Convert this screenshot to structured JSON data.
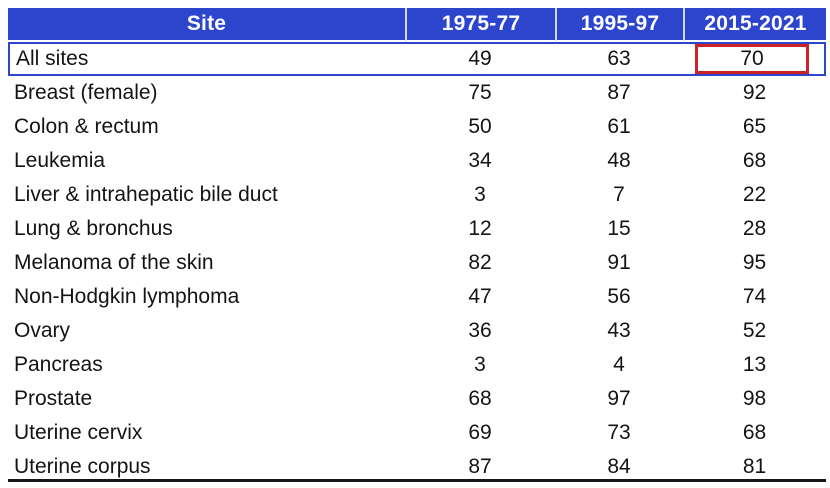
{
  "table": {
    "columns": [
      "Site",
      "1975-77",
      "1995-97",
      "2015-2021"
    ],
    "rows": [
      {
        "site": "All sites",
        "values": [
          "49",
          "63",
          "70"
        ],
        "row_highlight": true,
        "cell_highlight_index": 2
      },
      {
        "site": "Breast (female)",
        "values": [
          "75",
          "87",
          "92"
        ]
      },
      {
        "site": "Colon & rectum",
        "values": [
          "50",
          "61",
          "65"
        ]
      },
      {
        "site": "Leukemia",
        "values": [
          "34",
          "48",
          "68"
        ]
      },
      {
        "site": "Liver & intrahepatic bile duct",
        "values": [
          "3",
          "7",
          "22"
        ]
      },
      {
        "site": "Lung & bronchus",
        "values": [
          "12",
          "15",
          "28"
        ]
      },
      {
        "site": "Melanoma of the skin",
        "values": [
          "82",
          "91",
          "95"
        ]
      },
      {
        "site": "Non-Hodgkin lymphoma",
        "values": [
          "47",
          "56",
          "74"
        ]
      },
      {
        "site": "Ovary",
        "values": [
          "36",
          "43",
          "52"
        ]
      },
      {
        "site": "Pancreas",
        "values": [
          "3",
          "4",
          "13"
        ]
      },
      {
        "site": "Prostate",
        "values": [
          "68",
          "97",
          "98"
        ]
      },
      {
        "site": "Uterine cervix",
        "values": [
          "69",
          "73",
          "68"
        ]
      },
      {
        "site": "Uterine corpus",
        "values": [
          "87",
          "84",
          "81"
        ]
      }
    ],
    "colors": {
      "header_bg": "#2c45cc",
      "header_text": "#ffffff",
      "row_outline": "#2c45cc",
      "cell_box": "#cc2127",
      "bottom_rule": "#15151c"
    }
  },
  "chart_data": {
    "type": "table",
    "title": "",
    "columns": [
      "Site",
      "1975-77",
      "1995-97",
      "2015-2021"
    ],
    "rows": [
      [
        "All sites",
        49,
        63,
        70
      ],
      [
        "Breast (female)",
        75,
        87,
        92
      ],
      [
        "Colon & rectum",
        50,
        61,
        65
      ],
      [
        "Leukemia",
        34,
        48,
        68
      ],
      [
        "Liver & intrahepatic bile duct",
        3,
        7,
        22
      ],
      [
        "Lung & bronchus",
        12,
        15,
        28
      ],
      [
        "Melanoma of the skin",
        82,
        91,
        95
      ],
      [
        "Non-Hodgkin lymphoma",
        47,
        56,
        74
      ],
      [
        "Ovary",
        36,
        43,
        52
      ],
      [
        "Pancreas",
        3,
        4,
        13
      ],
      [
        "Prostate",
        68,
        97,
        98
      ],
      [
        "Uterine cervix",
        69,
        73,
        68
      ],
      [
        "Uterine corpus",
        87,
        84,
        81
      ]
    ],
    "layout_hints": {
      "header_style": "blue background, white bold text, light vertical separators",
      "highlighted_row": "All sites (blue outline)",
      "highlighted_cell": "All sites / 2015-2021 value 70 (red box)",
      "bottom_rule": true,
      "gridlines": false
    }
  }
}
